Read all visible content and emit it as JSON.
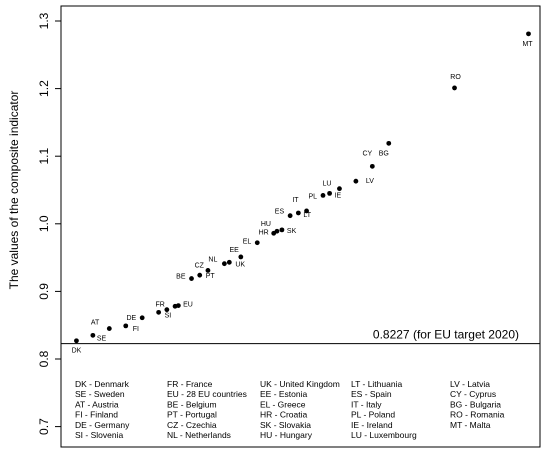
{
  "chart_data": {
    "type": "scatter",
    "title": "",
    "xlabel": "",
    "ylabel": "The values of the composite indicator",
    "ylim": [
      0.7,
      1.3
    ],
    "yticks": [
      "0.7",
      "0.8",
      "0.9",
      "1.0",
      "1.1",
      "1.2",
      "1.3"
    ],
    "grid": false,
    "reference_line": {
      "y": 0.8227,
      "label": "0.8227 (for EU target 2020)"
    },
    "points": [
      {
        "code": "DK",
        "x": 1,
        "y": 0.827
      },
      {
        "code": "SE",
        "x": 2,
        "y": 0.835
      },
      {
        "code": "AT",
        "x": 3,
        "y": 0.845
      },
      {
        "code": "FI",
        "x": 4,
        "y": 0.849
      },
      {
        "code": "DE",
        "x": 5,
        "y": 0.861
      },
      {
        "code": "SI",
        "x": 6,
        "y": 0.869
      },
      {
        "code": "FR",
        "x": 6.5,
        "y": 0.873
      },
      {
        "code": "EU",
        "x": 7,
        "y": 0.878
      },
      {
        "code": "EU",
        "x": 7.2,
        "y": 0.879
      },
      {
        "code": "BE",
        "x": 8,
        "y": 0.919
      },
      {
        "code": "PT",
        "x": 8.5,
        "y": 0.924
      },
      {
        "code": "CZ",
        "x": 9,
        "y": 0.931
      },
      {
        "code": "NL",
        "x": 10,
        "y": 0.941
      },
      {
        "code": "UK",
        "x": 10.3,
        "y": 0.943
      },
      {
        "code": "EE",
        "x": 11,
        "y": 0.951
      },
      {
        "code": "EL",
        "x": 12,
        "y": 0.972
      },
      {
        "code": "HR",
        "x": 13,
        "y": 0.986
      },
      {
        "code": "SK",
        "x": 13.5,
        "y": 0.991
      },
      {
        "code": "HU",
        "x": 13.2,
        "y": 0.989
      },
      {
        "code": "ES",
        "x": 14,
        "y": 1.012
      },
      {
        "code": "LT",
        "x": 14.5,
        "y": 1.016
      },
      {
        "code": "IT",
        "x": 15,
        "y": 1.019
      },
      {
        "code": "PL",
        "x": 16,
        "y": 1.042
      },
      {
        "code": "IE",
        "x": 16.4,
        "y": 1.045
      },
      {
        "code": "LU",
        "x": 17,
        "y": 1.052
      },
      {
        "code": "LV",
        "x": 18,
        "y": 1.063
      },
      {
        "code": "CY",
        "x": 19,
        "y": 1.085
      },
      {
        "code": "BG",
        "x": 20,
        "y": 1.119
      },
      {
        "code": "RO",
        "x": 24,
        "y": 1.201
      },
      {
        "code": "MT",
        "x": 28.5,
        "y": 1.281
      }
    ],
    "legend_columns": [
      [
        "DK - Denmark",
        "SE - Sweden",
        "AT - Austria",
        "FI - Finland",
        "DE - Germany",
        "SI - Slovenia"
      ],
      [
        "FR - France",
        "EU - 28 EU countries",
        "BE - Belgium",
        "PT - Portugal",
        "CZ - Czechia",
        "NL - Netherlands"
      ],
      [
        "UK - United Kingdom",
        "EE - Estonia",
        "EL - Greece",
        "HR - Croatia",
        "SK - Slovakia",
        "HU - Hungary"
      ],
      [
        "LT - Lithuania",
        "ES - Spain",
        "IT - Italy",
        "PL - Poland",
        "IE - Ireland",
        "LU - Luxembourg"
      ],
      [
        "LV - Latvia",
        "CY - Cyprus",
        "BG - Bulgaria",
        "RO - Romania",
        "MT - Malta"
      ]
    ]
  }
}
